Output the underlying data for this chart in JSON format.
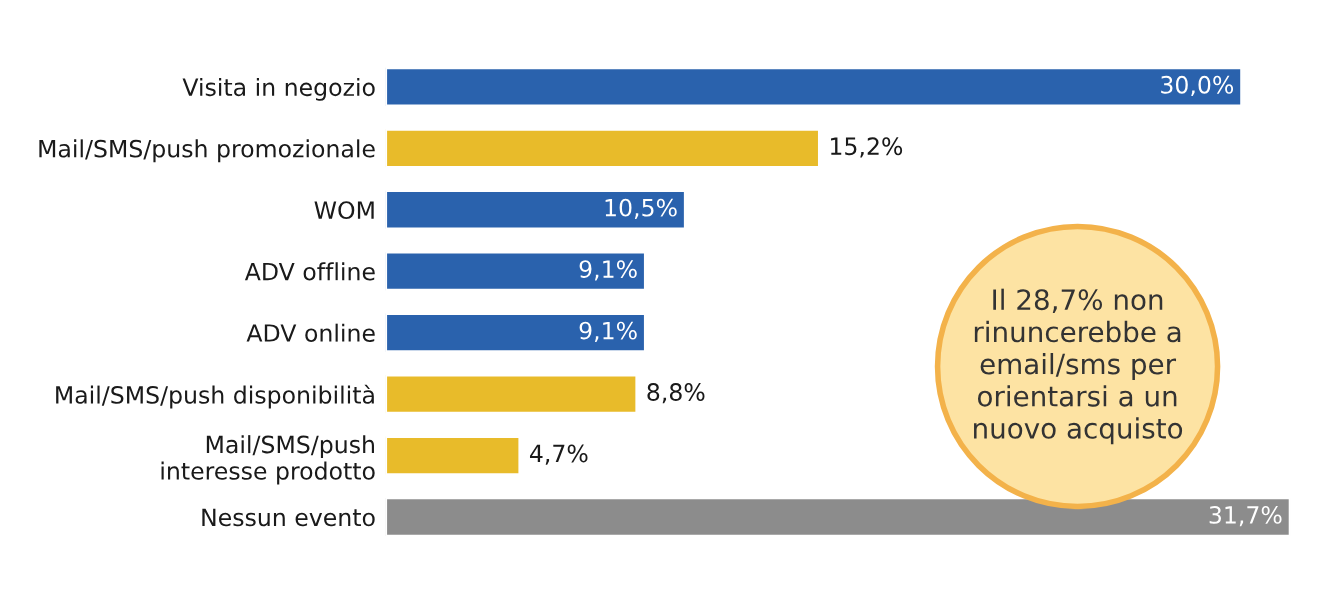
{
  "chart_data": {
    "type": "bar",
    "orientation": "horizontal",
    "categories": [
      "Visita in negozio",
      "Mail/SMS/push promozionale",
      "WOM",
      "ADV offline",
      "ADV online",
      "Mail/SMS/push disponibilità",
      "Mail/SMS/push\ninteresse prodotto",
      "Nessun evento"
    ],
    "values": [
      30.0,
      15.2,
      10.5,
      9.1,
      9.1,
      8.8,
      4.7,
      31.7
    ],
    "colors": [
      "#2a62ad",
      "#e8bb2a",
      "#2a62ad",
      "#2a62ad",
      "#2a62ad",
      "#e8bb2a",
      "#e8bb2a",
      "#8c8c8c"
    ],
    "value_labels": [
      "30,0%",
      "15,2%",
      "10,5%",
      "9,1%",
      "9,1%",
      "8,8%",
      "4,7%",
      "31,7%"
    ],
    "annotations": [
      "Il 28,7% non\nrinuncerebbe a\nemail/sms per\norientarsi a un\nnuovo acquisto"
    ],
    "grid": false,
    "legend": false
  }
}
